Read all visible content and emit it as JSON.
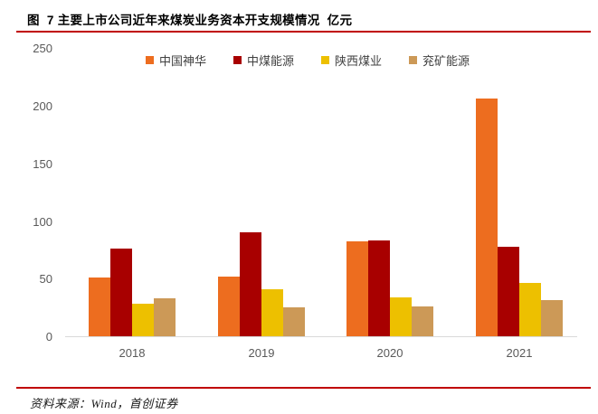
{
  "title": {
    "text": "图  7 主要上市公司近年来煤炭业务资本开支规模情况  亿元"
  },
  "source": {
    "text": "资料来源：Wind，首创证券"
  },
  "colors": {
    "accent_red": "#c00000",
    "axis_line": "#d9d9d9",
    "tick_text": "#595959",
    "legend_text": "#404040"
  },
  "chart_data": {
    "type": "bar",
    "title": "图 7 主要上市公司近年来煤炭业务资本开支规模情况",
    "unit_label": "亿元",
    "categories": [
      "2018",
      "2019",
      "2020",
      "2021"
    ],
    "series": [
      {
        "name": "中国神华",
        "color": "#ed6d1f",
        "values": [
          51,
          52,
          82,
          206
        ]
      },
      {
        "name": "中煤能源",
        "color": "#a80000",
        "values": [
          76,
          90,
          83,
          78
        ]
      },
      {
        "name": "陕西煤业",
        "color": "#edc000",
        "values": [
          28,
          41,
          34,
          46
        ]
      },
      {
        "name": "兖矿能源",
        "color": "#cc9957",
        "values": [
          33,
          25,
          26,
          31
        ]
      }
    ],
    "xlabel": "",
    "ylabel": "",
    "ylim": [
      0,
      250
    ],
    "yticks": [
      0,
      50,
      100,
      150,
      200,
      250
    ],
    "grid": false,
    "legend_position": "top"
  }
}
